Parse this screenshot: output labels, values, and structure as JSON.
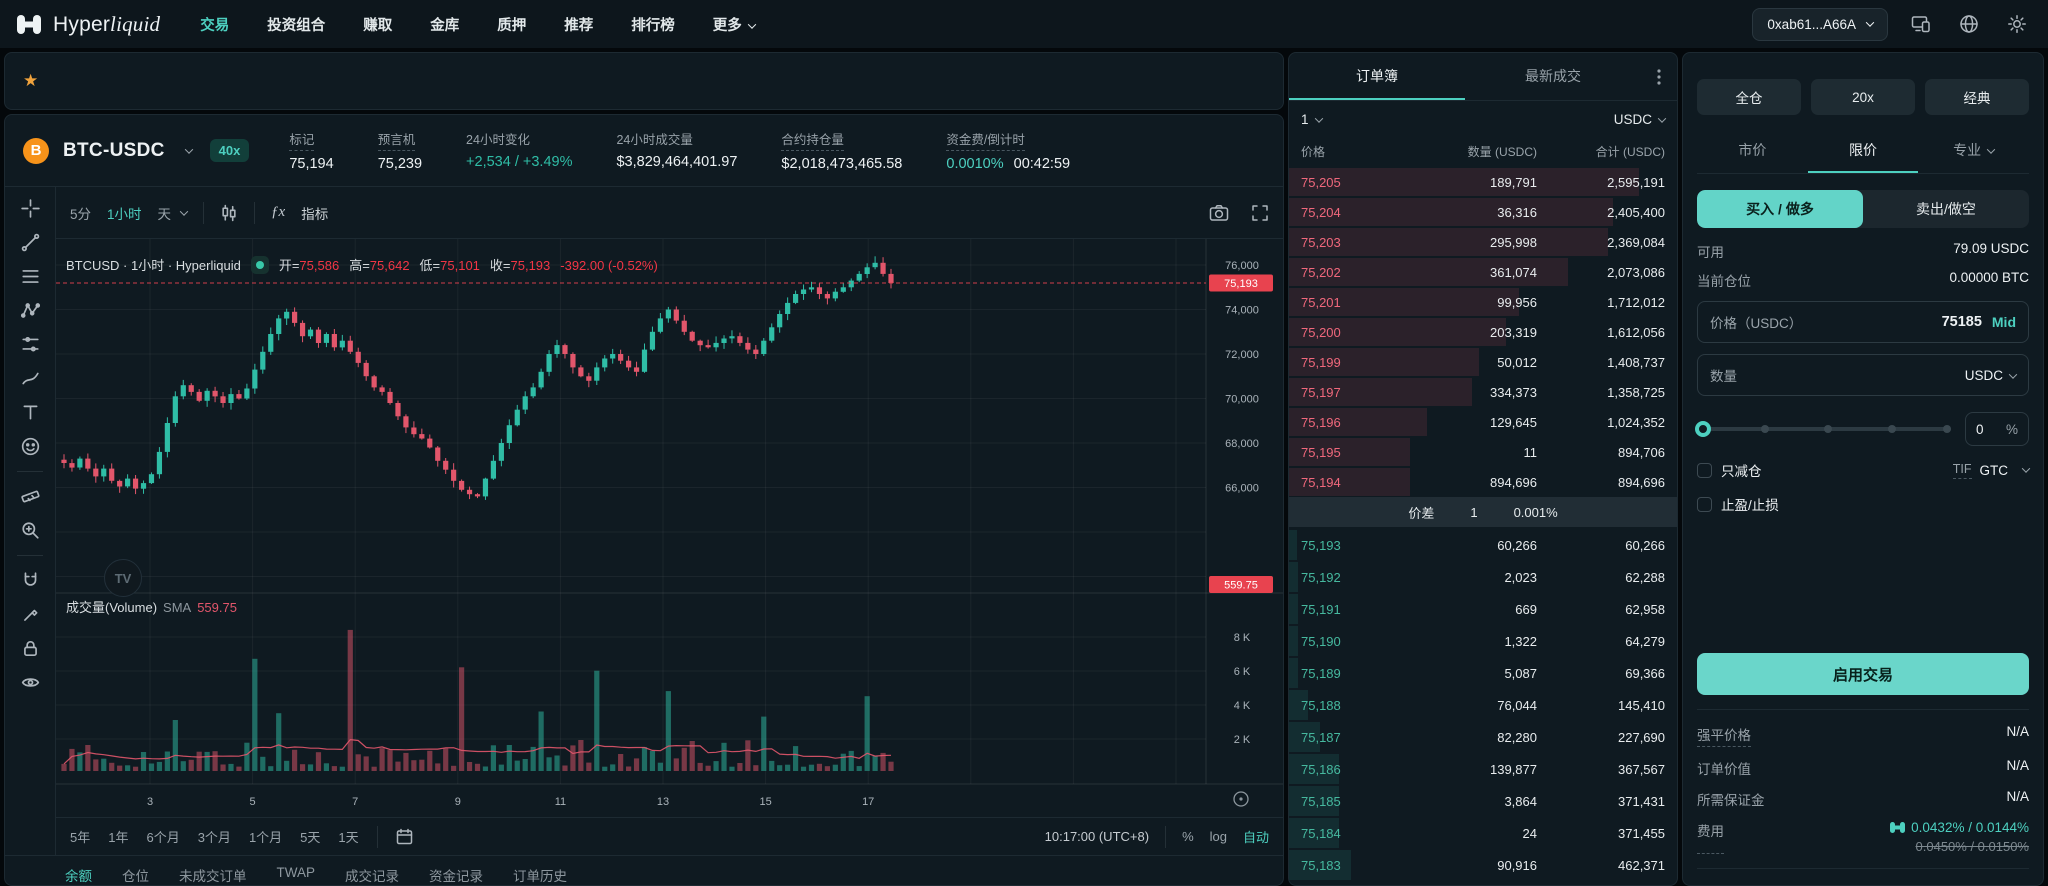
{
  "nav": {
    "brand_regular": "Hyper",
    "brand_italic": "liquid",
    "items": [
      "交易",
      "投资组合",
      "赚取",
      "金库",
      "质押",
      "推荐",
      "排行榜",
      "更多"
    ],
    "active": "交易",
    "wallet": "0xab61...A66A"
  },
  "market": {
    "pair": "BTC-USDC",
    "leverage_badge": "40x",
    "stats": [
      {
        "label": "标记",
        "value": "75,194",
        "dashed": true
      },
      {
        "label": "预言机",
        "value": "75,239",
        "dashed": true
      },
      {
        "label": "24小时变化",
        "value": "+2,534 / +3.49%",
        "color": "green"
      },
      {
        "label": "24小时成交量",
        "value": "$3,829,464,401.97"
      },
      {
        "label": "合约持仓量",
        "value": "$2,018,473,465.58",
        "dashed": true
      },
      {
        "label": "资金费/倒计时",
        "value": "0.0010%",
        "value2": "00:42:59",
        "color": "teal",
        "dashed": true
      }
    ]
  },
  "chart": {
    "intervals": [
      "5分",
      "1小时",
      "天"
    ],
    "active_interval": "1小时",
    "indicators_label": "指标",
    "legend": {
      "symbol": "BTCUSD · 1小时 · Hyperliquid",
      "ohlc": [
        {
          "k": "开=",
          "v": "75,586"
        },
        {
          "k": "高=",
          "v": "75,642"
        },
        {
          "k": "低=",
          "v": "75,101"
        },
        {
          "k": "收=",
          "v": "75,193"
        }
      ],
      "change": "-392.00 (-0.52%)"
    },
    "volume_legend": {
      "title": "成交量(Volume)",
      "sma": "SMA",
      "sma_value": "559.75"
    },
    "price_axis": [
      "76,000",
      "74,000",
      "72,000",
      "70,000",
      "68,000",
      "66,000"
    ],
    "volume_axis": [
      "8 K",
      "6 K",
      "4 K",
      "2 K"
    ],
    "time_axis": [
      "3",
      "5",
      "7",
      "9",
      "11",
      "13",
      "15",
      "17"
    ],
    "price_badge": "75,193",
    "volume_badge": "559.75",
    "ranges": [
      "5年",
      "1年",
      "6个月",
      "3个月",
      "1个月",
      "5天",
      "1天"
    ],
    "clock": "10:17:00 (UTC+8)",
    "percent": "%",
    "log": "log",
    "auto": "自动",
    "watermark": "TV"
  },
  "chart_data": {
    "type": "candlestick",
    "symbol": "BTC-USDC",
    "interval": "1小时",
    "open": 75586,
    "high": 75642,
    "low": 75101,
    "close": 75193,
    "change": -392.0,
    "change_pct": -0.52,
    "price_axis_range": [
      64000,
      76000
    ],
    "volume_axis_range": [
      0,
      8000
    ],
    "sma": 559.75,
    "colors": {
      "up": "#2fbda6",
      "down": "#e2566b"
    },
    "closes": [
      67100,
      66900,
      67300,
      66850,
      66500,
      66850,
      66300,
      66050,
      66400,
      65950,
      66200,
      66600,
      67600,
      68900,
      70100,
      70600,
      70300,
      69900,
      70350,
      70100,
      69800,
      70200,
      70000,
      70450,
      71300,
      72100,
      72900,
      73600,
      73900,
      73400,
      72800,
      73100,
      72500,
      72900,
      72300,
      72600,
      72100,
      71600,
      71000,
      70500,
      70300,
      69800,
      69200,
      68700,
      68400,
      68200,
      67800,
      67200,
      66800,
      66300,
      65900,
      65700,
      65600,
      66400,
      67200,
      68000,
      68800,
      69500,
      70100,
      70500,
      71200,
      72000,
      72400,
      72000,
      71400,
      71000,
      70800,
      71400,
      71800,
      72000,
      71700,
      71400,
      71200,
      72200,
      73000,
      73600,
      74000,
      73500,
      73000,
      72600,
      72400,
      72300,
      72500,
      72700,
      72800,
      72500,
      72200,
      72000,
      72600,
      73200,
      73800,
      74300,
      74700,
      74900,
      75000,
      74700,
      74500,
      74800,
      75000,
      75300,
      75600,
      75900,
      76100,
      75600,
      75193
    ],
    "volume_spikes": {
      "14": 3000,
      "24": 6600,
      "27": 3400,
      "36": 8300,
      "50": 6100,
      "60": 3500,
      "67": 5900,
      "76": 4700,
      "88": 3200,
      "101": 4400
    }
  },
  "orderbook": {
    "tabs": [
      "订单簿",
      "最新成交"
    ],
    "active_tab": "订单簿",
    "tick_size": "1",
    "unit": "USDC",
    "headers": [
      "价格",
      "数量 (USDC)",
      "合计 (USDC)"
    ],
    "asks": [
      [
        "75,205",
        "189,791",
        "2,595,191"
      ],
      [
        "75,204",
        "36,316",
        "2,405,400"
      ],
      [
        "75,203",
        "295,998",
        "2,369,084"
      ],
      [
        "75,202",
        "361,074",
        "2,073,086"
      ],
      [
        "75,201",
        "99,956",
        "1,712,012"
      ],
      [
        "75,200",
        "203,319",
        "1,612,056"
      ],
      [
        "75,199",
        "50,012",
        "1,408,737"
      ],
      [
        "75,197",
        "334,373",
        "1,358,725"
      ],
      [
        "75,196",
        "129,645",
        "1,024,352"
      ],
      [
        "75,195",
        "11",
        "894,706"
      ],
      [
        "75,194",
        "894,696",
        "894,696"
      ]
    ],
    "spread": {
      "label": "价差",
      "value": "1",
      "percent": "0.001%"
    },
    "bids": [
      [
        "75,193",
        "60,266",
        "60,266"
      ],
      [
        "75,192",
        "2,023",
        "62,288"
      ],
      [
        "75,191",
        "669",
        "62,958"
      ],
      [
        "75,190",
        "1,322",
        "64,279"
      ],
      [
        "75,189",
        "5,087",
        "69,366"
      ],
      [
        "75,188",
        "76,044",
        "145,410"
      ],
      [
        "75,187",
        "82,280",
        "227,690"
      ],
      [
        "75,186",
        "139,877",
        "367,567"
      ],
      [
        "75,185",
        "3,864",
        "371,431"
      ],
      [
        "75,184",
        "24",
        "371,455"
      ],
      [
        "75,183",
        "90,916",
        "462,371"
      ]
    ]
  },
  "trade": {
    "margin_mode": "全仓",
    "leverage": "20x",
    "mode": "经典",
    "order_tabs": [
      "市价",
      "限价",
      "专业"
    ],
    "active_order_tab": "限价",
    "buy_label": "买入 / 做多",
    "sell_label": "卖出/做空",
    "available_label": "可用",
    "available_value": "79.09 USDC",
    "position_label": "当前仓位",
    "position_value": "0.00000 BTC",
    "price_label": "价格（USDC）",
    "price_value": "75185",
    "mid_label": "Mid",
    "size_label": "数量",
    "size_unit": "USDC",
    "slider_value": "0",
    "slider_unit": "%",
    "reduce_only": "只减仓",
    "tif_label": "TIF",
    "tif_value": "GTC",
    "tpsl": "止盈/止损",
    "submit": "启用交易",
    "info_rows": [
      {
        "label": "强平价格",
        "value": "N/A"
      },
      {
        "label": "订单价值",
        "value": "N/A"
      },
      {
        "label": "所需保证金",
        "value": "N/A"
      }
    ],
    "fees_label": "费用",
    "fees_value": "0.0432% / 0.0144%",
    "fees_old": "0.0450% / 0.0150%"
  },
  "bottom_tabs": [
    "余额",
    "仓位",
    "未成交订单",
    "TWAP",
    "成交记录",
    "资金记录",
    "订单历史"
  ]
}
